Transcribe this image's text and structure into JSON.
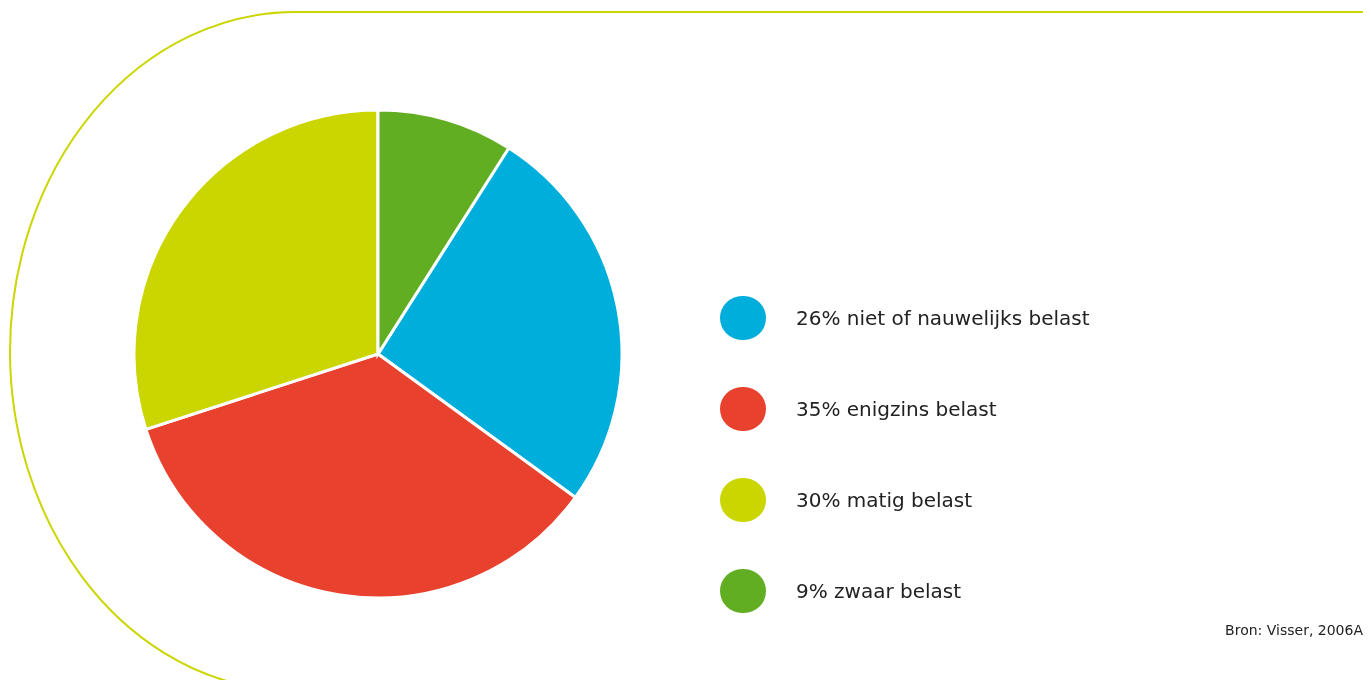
{
  "chart_data": {
    "type": "pie",
    "categories": [
      "26% niet of nauwelijks belast",
      "35% enigzins belast",
      "30% matig belast",
      "9% zwaar belast"
    ],
    "values": [
      26,
      35,
      30,
      9
    ],
    "colors": [
      "#00aedb",
      "#e8412e",
      "#cbd600",
      "#62ae22"
    ],
    "legend": "right",
    "annotations": [
      "Bron: Visser, 2006A"
    ]
  }
}
